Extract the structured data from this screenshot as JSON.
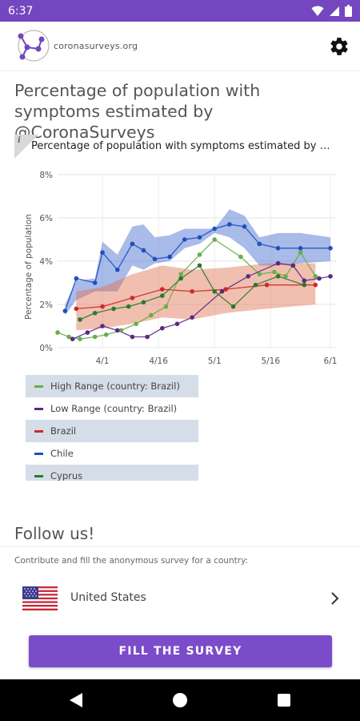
{
  "status_bar": {
    "time": "6:37"
  },
  "app": {
    "logo_text": "coronasurveys.org"
  },
  "page": {
    "title": "Percentage of population with symptoms estimated by @CoronaSurveys"
  },
  "card": {
    "title": "Percentage of population with symptoms estimated by @CoronaSurveys"
  },
  "chart_data": {
    "type": "line",
    "title": "Percentage of population with symptoms estimated ...",
    "xlabel": "",
    "ylabel": "Percentage of population",
    "x_ticks": [
      "4/1",
      "4/16",
      "5/1",
      "5/16",
      "6/1"
    ],
    "y_ticks": [
      "0%",
      "2%",
      "4%",
      "6%",
      "8%"
    ],
    "ylim": [
      0,
      8
    ],
    "xlim": [
      "2020-03-20",
      "2020-06-01"
    ],
    "grid": true,
    "legend_position": "bottom",
    "series": [
      {
        "name": "Chile",
        "color": "#1f4fbf",
        "band_color": "#4169cc",
        "band_lower": [
          1.5,
          2.2,
          2.6,
          2.6,
          2.6,
          3.8,
          3.6,
          3.9,
          4.0,
          4.6,
          4.8,
          5.3,
          5.1,
          4.6,
          3.8,
          3.8,
          3.9,
          4.0
        ],
        "band_upper": [
          2.0,
          3.1,
          3.2,
          4.9,
          4.3,
          5.6,
          5.7,
          5.1,
          5.2,
          5.5,
          5.5,
          5.5,
          6.4,
          6.1,
          5.1,
          5.3,
          5.3,
          5.1
        ],
        "values": [
          1.7,
          3.2,
          3.0,
          4.4,
          3.6,
          4.8,
          4.5,
          4.1,
          4.2,
          5.0,
          5.1,
          5.5,
          5.7,
          5.6,
          4.8,
          4.6,
          4.6,
          4.6
        ],
        "x": [
          "2020-03-22",
          "2020-03-25",
          "2020-03-30",
          "2020-04-01",
          "2020-04-05",
          "2020-04-09",
          "2020-04-12",
          "2020-04-15",
          "2020-04-19",
          "2020-04-23",
          "2020-04-27",
          "2020-05-01",
          "2020-05-05",
          "2020-05-09",
          "2020-05-13",
          "2020-05-18",
          "2020-05-24",
          "2020-06-01"
        ]
      },
      {
        "name": "Brazil",
        "color": "#cc2a2a",
        "band_color": "#e07050",
        "band_lower": [
          0.8,
          0.9,
          1.1,
          1.4,
          1.3,
          1.6,
          1.8,
          2.0
        ],
        "band_upper": [
          2.6,
          2.8,
          3.4,
          3.8,
          3.6,
          3.7,
          3.9,
          3.9
        ],
        "values": [
          1.8,
          1.9,
          2.3,
          2.7,
          2.6,
          2.7,
          2.9,
          2.9
        ],
        "x": [
          "2020-03-25",
          "2020-04-01",
          "2020-04-09",
          "2020-04-17",
          "2020-04-25",
          "2020-05-04",
          "2020-05-15",
          "2020-05-28"
        ]
      },
      {
        "name": "High Range (country: Brazil)",
        "color": "#6aad4a",
        "values": [
          0.7,
          0.5,
          0.4,
          0.5,
          0.6,
          0.8,
          1.1,
          1.5,
          1.9,
          3.4,
          4.3,
          5.0,
          4.2,
          3.4,
          3.5,
          3.3,
          4.4,
          3.3
        ],
        "x": [
          "2020-03-20",
          "2020-03-23",
          "2020-03-26",
          "2020-03-30",
          "2020-04-02",
          "2020-04-06",
          "2020-04-10",
          "2020-04-14",
          "2020-04-18",
          "2020-04-22",
          "2020-04-27",
          "2020-05-01",
          "2020-05-08",
          "2020-05-13",
          "2020-05-17",
          "2020-05-20",
          "2020-05-24",
          "2020-05-28"
        ]
      },
      {
        "name": "Low Range (country: Brazil)",
        "color": "#5a2a82",
        "values": [
          0.4,
          0.7,
          1.0,
          0.8,
          0.5,
          0.5,
          0.9,
          1.1,
          1.4,
          2.6,
          3.3,
          3.9,
          3.8,
          3.1,
          3.2,
          3.3
        ],
        "x": [
          "2020-03-24",
          "2020-03-28",
          "2020-04-01",
          "2020-04-05",
          "2020-04-09",
          "2020-04-13",
          "2020-04-17",
          "2020-04-21",
          "2020-04-25",
          "2020-05-03",
          "2020-05-10",
          "2020-05-18",
          "2020-05-22",
          "2020-05-25",
          "2020-05-29",
          "2020-06-01"
        ]
      },
      {
        "name": "Cyprus",
        "color": "#2a7a2a",
        "values": [
          1.3,
          1.6,
          1.8,
          1.9,
          2.1,
          2.4,
          3.2,
          3.8,
          2.6,
          1.9,
          2.9,
          3.3,
          2.9
        ],
        "x": [
          "2020-03-26",
          "2020-03-30",
          "2020-04-04",
          "2020-04-08",
          "2020-04-12",
          "2020-04-17",
          "2020-04-22",
          "2020-04-27",
          "2020-05-01",
          "2020-05-06",
          "2020-05-12",
          "2020-05-18",
          "2020-05-25"
        ]
      }
    ]
  },
  "legend": {
    "items": [
      {
        "label": "High Range (country: Brazil)",
        "color": "#6aad4a"
      },
      {
        "label": "Low Range (country: Brazil)",
        "color": "#5a2a82"
      },
      {
        "label": "Brazil",
        "color": "#cc2a2a"
      },
      {
        "label": "Chile",
        "color": "#1f4fbf"
      },
      {
        "label": "Cyprus",
        "color": "#2a7a2a"
      }
    ]
  },
  "follow": {
    "title": "Follow us!",
    "contribute_text": "Contribute and fill the anonymous survey for a country:",
    "country": "United States"
  },
  "survey_button": {
    "label": "FILL THE SURVEY"
  },
  "colors": {
    "primary": "#7446bf",
    "button": "#7b4cc9"
  }
}
